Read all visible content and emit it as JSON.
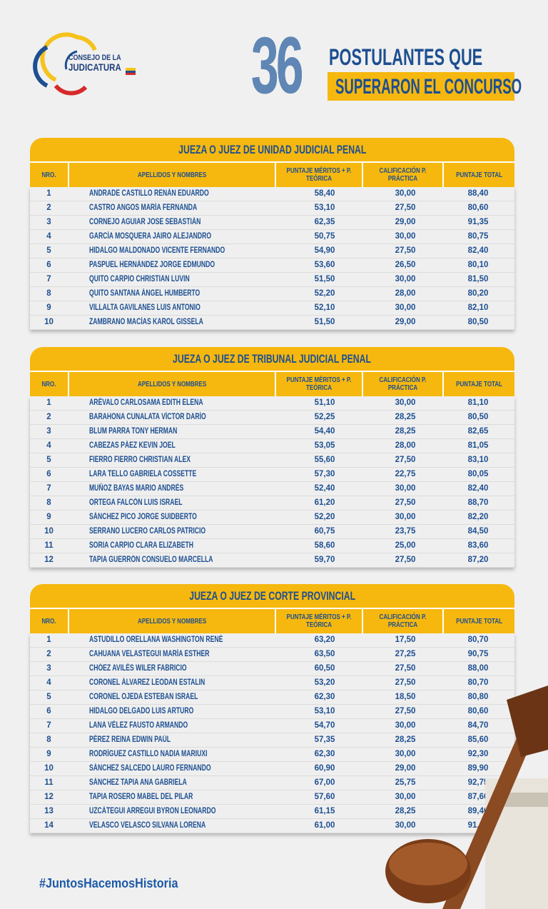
{
  "logo": {
    "line1": "CONSEJO DE LA",
    "line2": "JUDICATURA"
  },
  "headline": {
    "number": "36",
    "line1": "POSTULANTES QUE",
    "line2": "SUPERARON EL CONCURSO"
  },
  "columns": [
    "NRO.",
    "APELLIDOS Y NOMBRES",
    "PUNTAJE MÉRITOS + P. TEÓRICA",
    "CALIFICACIÓN P. PRÁCTICA",
    "PUNTAJE TOTAL"
  ],
  "sections": [
    {
      "title": "JUEZA O JUEZ DE UNIDAD JUDICIAL PENAL",
      "rows": [
        [
          "1",
          "ANDRADE CASTILLO RENÁN EDUARDO",
          "58,40",
          "30,00",
          "88,40"
        ],
        [
          "2",
          "CASTRO ANGOS MARÍA FERNANDA",
          "53,10",
          "27,50",
          "80,60"
        ],
        [
          "3",
          "CORNEJO AGUIAR JOSE SEBASTIÁN",
          "62,35",
          "29,00",
          "91,35"
        ],
        [
          "4",
          "GARCÍA MOSQUERA JAIRO ALEJANDRO",
          "50,75",
          "30,00",
          "80,75"
        ],
        [
          "5",
          "HIDALGO MALDONADO VICENTE FERNANDO",
          "54,90",
          "27,50",
          "82,40"
        ],
        [
          "6",
          "PASPUEL HERNÁNDEZ JORGE EDMUNDO",
          "53,60",
          "26,50",
          "80,10"
        ],
        [
          "7",
          "QUITO CARPIO CHRISTIAN LUVIN",
          "51,50",
          "30,00",
          "81,50"
        ],
        [
          "8",
          "QUITO SANTANA ÁNGEL HUMBERTO",
          "52,20",
          "28,00",
          "80,20"
        ],
        [
          "9",
          "VILLALTA GAVILANES LUIS ANTONIO",
          "52,10",
          "30,00",
          "82,10"
        ],
        [
          "10",
          "ZAMBRANO MACÍAS KAROL GISSELA",
          "51,50",
          "29,00",
          "80,50"
        ]
      ]
    },
    {
      "title": "JUEZA O JUEZ DE TRIBUNAL JUDICIAL PENAL",
      "rows": [
        [
          "1",
          "ARÉVALO CARLOSAMA EDITH ELENA",
          "51,10",
          "30,00",
          "81,10"
        ],
        [
          "2",
          "BARAHONA CUNALATA VÍCTOR DARÍO",
          "52,25",
          "28,25",
          "80,50"
        ],
        [
          "3",
          "BLUM PARRA TONY HERMAN",
          "54,40",
          "28,25",
          "82,65"
        ],
        [
          "4",
          "CABEZAS PÁEZ KEVIN JOEL",
          "53,05",
          "28,00",
          "81,05"
        ],
        [
          "5",
          "FIERRO FIERRO CHRISTIAN ALEX",
          "55,60",
          "27,50",
          "83,10"
        ],
        [
          "6",
          "LARA TELLO GABRIELA COSSETTE",
          "57,30",
          "22,75",
          "80,05"
        ],
        [
          "7",
          "MUÑOZ BAYAS MARIO ANDRÉS",
          "52,40",
          "30,00",
          "82,40"
        ],
        [
          "8",
          "ORTEGA FALCÓN LUIS ISRAEL",
          "61,20",
          "27,50",
          "88,70"
        ],
        [
          "9",
          "SÁNCHEZ PICO JORGE SUIDBERTO",
          "52,20",
          "30,00",
          "82,20"
        ],
        [
          "10",
          "SERRANO LUCERO CARLOS PATRICIO",
          "60,75",
          "23,75",
          "84,50"
        ],
        [
          "11",
          "SORIA CARPIO CLARA ELIZABETH",
          "58,60",
          "25,00",
          "83,60"
        ],
        [
          "12",
          "TAPIA GUERRÓN CONSUELO MARCELLA",
          "59,70",
          "27,50",
          "87,20"
        ]
      ]
    },
    {
      "title": "JUEZA O JUEZ DE CORTE PROVINCIAL",
      "rows": [
        [
          "1",
          "ASTUDILLO ORELLANA WASHINGTON RENÉ",
          "63,20",
          "17,50",
          "80,70"
        ],
        [
          "2",
          "CAHUANA VELASTEGUI MARÍA ESTHER",
          "63,50",
          "27,25",
          "90,75"
        ],
        [
          "3",
          "CHÓEZ AVILÉS WILER FABRICIO",
          "60,50",
          "27,50",
          "88,00"
        ],
        [
          "4",
          "CORONEL ÁLVAREZ LEODAN ESTALIN",
          "53,20",
          "27,50",
          "80,70"
        ],
        [
          "5",
          "CORONEL OJEDA ESTEBAN ISRAEL",
          "62,30",
          "18,50",
          "80,80"
        ],
        [
          "6",
          "HIDALGO DELGADO LUIS ARTURO",
          "53,10",
          "27,50",
          "80,60"
        ],
        [
          "7",
          "LANA VÉLEZ FAUSTO ARMANDO",
          "54,70",
          "30,00",
          "84,70"
        ],
        [
          "8",
          "PÉREZ REINA EDWIN PAÚL",
          "57,35",
          "28,25",
          "85,60"
        ],
        [
          "9",
          "RODRÍGUEZ CASTILLO NADIA MARIUXI",
          "62,30",
          "30,00",
          "92,30"
        ],
        [
          "10",
          "SÁNCHEZ SALCEDO LAURO FERNANDO",
          "60,90",
          "29,00",
          "89,90"
        ],
        [
          "11",
          "SÁNCHEZ TAPIA ANA GABRIELA",
          "67,00",
          "25,75",
          "92,75"
        ],
        [
          "12",
          "TAPIA ROSERO MABEL DEL PILAR",
          "57,60",
          "30,00",
          "87,60"
        ],
        [
          "13",
          "UZCÁTEGUI ARREGUI BYRON LEONARDO",
          "61,15",
          "28,25",
          "89,40"
        ],
        [
          "14",
          "VELASCO VELASCO SILVANA LORENA",
          "61,00",
          "30,00",
          "91,00"
        ]
      ]
    }
  ],
  "hashtag": "#JuntosHacemosHistoria",
  "colors": {
    "yellow": "#f6b80f",
    "blue": "#1d4f91",
    "background": "#f0f0f0"
  }
}
